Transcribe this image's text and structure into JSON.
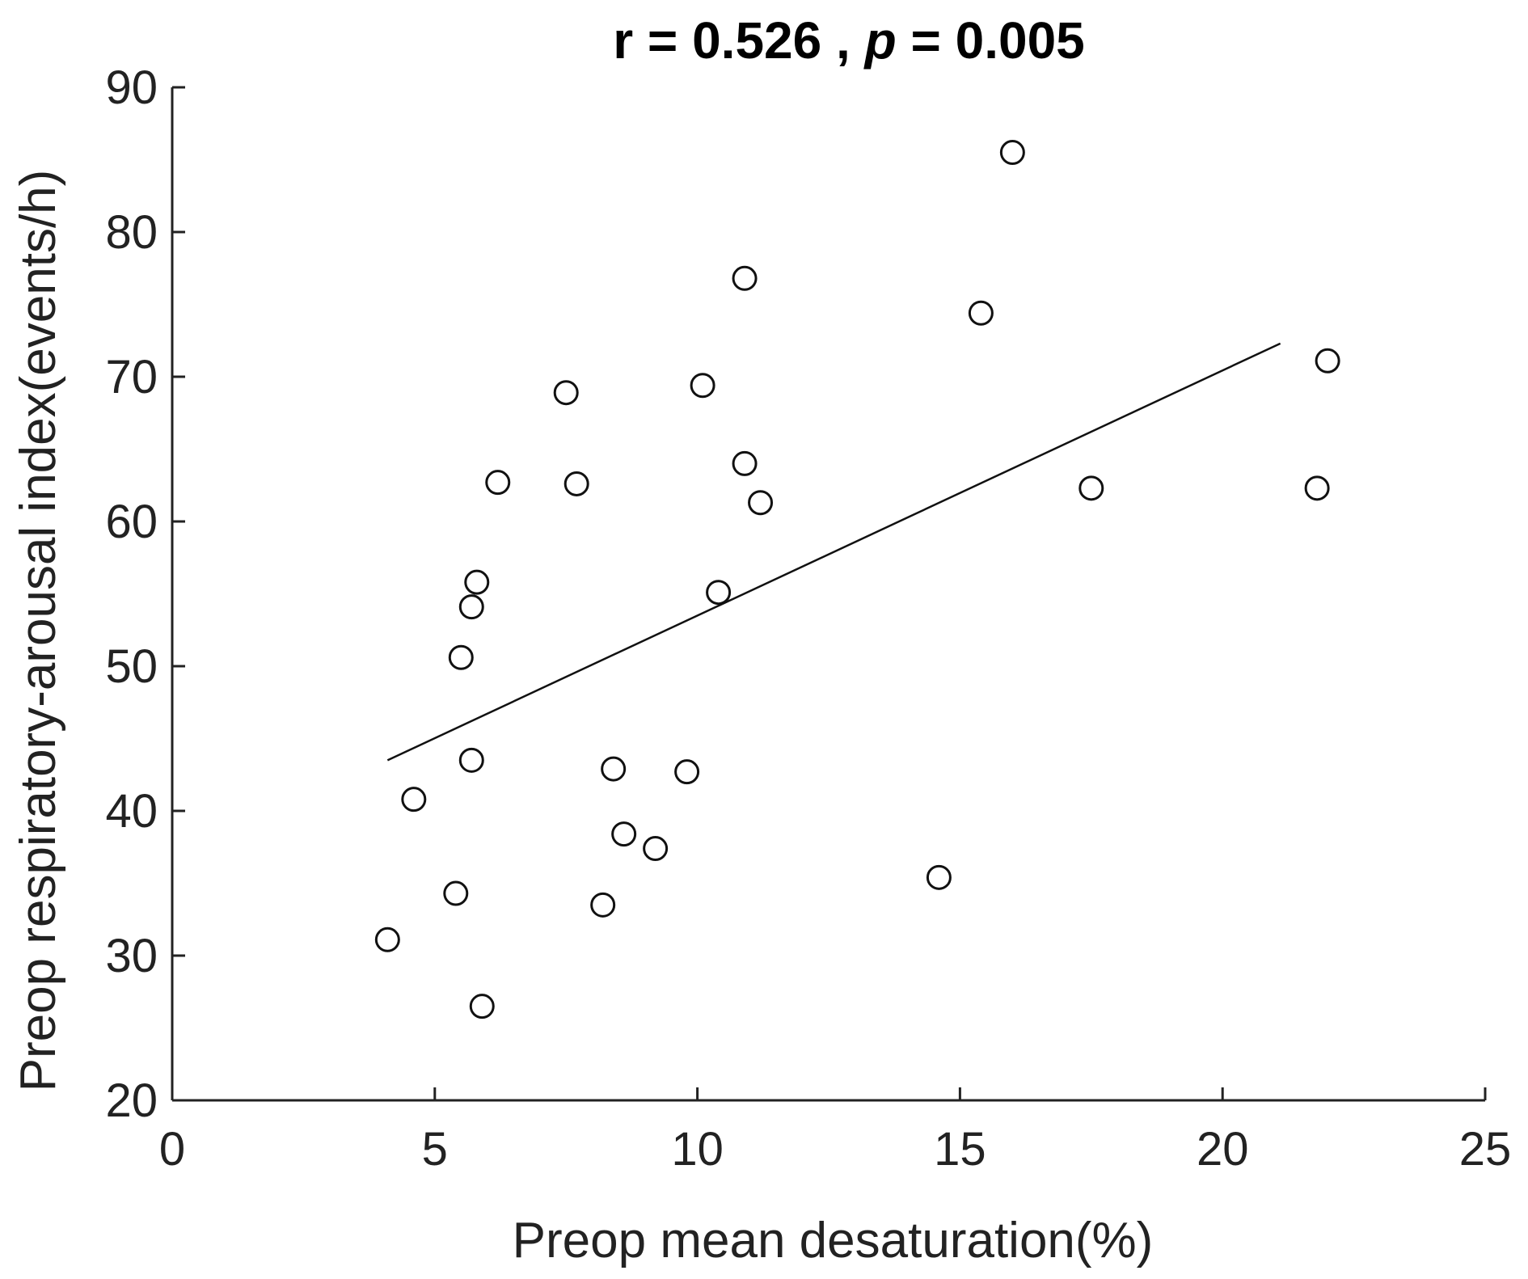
{
  "chart_data": {
    "type": "scatter",
    "title": {
      "r_label": "r",
      "r_value": "0.526",
      "p_label": "p",
      "p_value": "0.005"
    },
    "xlabel": "Preop mean desaturation(%)",
    "ylabel": "Preop respiratory-arousal index(events/h)",
    "xlim": [
      0,
      25
    ],
    "ylim": [
      20,
      90
    ],
    "x_ticks": [
      0,
      5,
      10,
      15,
      20,
      25
    ],
    "y_ticks": [
      20,
      30,
      40,
      50,
      60,
      70,
      80,
      90
    ],
    "grid": false,
    "legend": "none",
    "points": [
      {
        "x": 4.1,
        "y": 31.1
      },
      {
        "x": 4.6,
        "y": 40.8
      },
      {
        "x": 5.4,
        "y": 34.3
      },
      {
        "x": 5.5,
        "y": 50.6
      },
      {
        "x": 5.7,
        "y": 54.1
      },
      {
        "x": 5.7,
        "y": 43.5
      },
      {
        "x": 5.8,
        "y": 55.8
      },
      {
        "x": 5.9,
        "y": 26.5
      },
      {
        "x": 6.2,
        "y": 62.7
      },
      {
        "x": 7.5,
        "y": 68.9
      },
      {
        "x": 7.7,
        "y": 62.6
      },
      {
        "x": 8.2,
        "y": 33.5
      },
      {
        "x": 8.4,
        "y": 42.9
      },
      {
        "x": 8.6,
        "y": 38.4
      },
      {
        "x": 9.2,
        "y": 37.4
      },
      {
        "x": 9.8,
        "y": 42.7
      },
      {
        "x": 10.1,
        "y": 69.4
      },
      {
        "x": 10.4,
        "y": 55.1
      },
      {
        "x": 10.9,
        "y": 76.8
      },
      {
        "x": 10.9,
        "y": 64.0
      },
      {
        "x": 11.2,
        "y": 61.3
      },
      {
        "x": 14.6,
        "y": 35.4
      },
      {
        "x": 15.4,
        "y": 74.4
      },
      {
        "x": 16.0,
        "y": 85.5
      },
      {
        "x": 17.5,
        "y": 62.3
      },
      {
        "x": 21.8,
        "y": 62.3
      },
      {
        "x": 22.0,
        "y": 71.1
      }
    ],
    "trend_line": {
      "x": [
        4.1,
        21.1
      ],
      "y": [
        43.5,
        72.3
      ]
    },
    "colors": {
      "marker_stroke": "#111111",
      "axis": "#222222",
      "line": "#111111"
    }
  }
}
